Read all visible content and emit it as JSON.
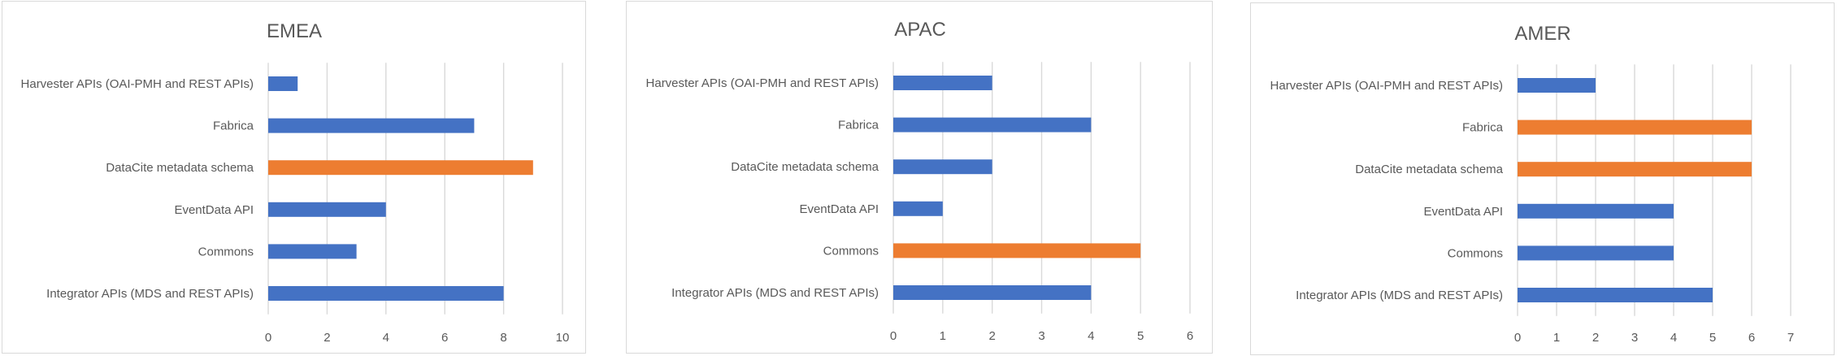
{
  "colors": {
    "default_bar": "#4472C4",
    "highlight_bar": "#ED7D31",
    "gridline": "#D9D9D9",
    "text": "#595959"
  },
  "chart_data": [
    {
      "type": "bar",
      "orientation": "horizontal",
      "title": "EMEA",
      "categories": [
        "Harvester APIs (OAI-PMH and REST APIs)",
        "Fabrica",
        "DataCite metadata schema",
        "EventData API",
        "Commons",
        "Integrator APIs (MDS and REST APIs)"
      ],
      "values": [
        1,
        7,
        9,
        4,
        3,
        8
      ],
      "highlight": [
        false,
        false,
        true,
        false,
        false,
        false
      ],
      "xlim": [
        0,
        10
      ],
      "xticks": [
        0,
        2,
        4,
        6,
        8,
        10
      ],
      "grid": true
    },
    {
      "type": "bar",
      "orientation": "horizontal",
      "title": "APAC",
      "categories": [
        "Harvester APIs (OAI-PMH and REST APIs)",
        "Fabrica",
        "DataCite metadata schema",
        "EventData API",
        "Commons",
        "Integrator APIs (MDS and REST APIs)"
      ],
      "values": [
        2,
        4,
        2,
        1,
        5,
        4
      ],
      "highlight": [
        false,
        false,
        false,
        false,
        true,
        false
      ],
      "xlim": [
        0,
        6
      ],
      "xticks": [
        0,
        1,
        2,
        3,
        4,
        5,
        6
      ],
      "grid": true
    },
    {
      "type": "bar",
      "orientation": "horizontal",
      "title": "AMER",
      "categories": [
        "Harvester APIs (OAI-PMH and REST APIs)",
        "Fabrica",
        "DataCite metadata schema",
        "EventData API",
        "Commons",
        "Integrator APIs (MDS and REST APIs)"
      ],
      "values": [
        2,
        6,
        6,
        4,
        4,
        5
      ],
      "highlight": [
        false,
        true,
        true,
        false,
        false,
        false
      ],
      "xlim": [
        0,
        7
      ],
      "xticks": [
        0,
        1,
        2,
        3,
        4,
        5,
        6,
        7
      ],
      "grid": true
    }
  ]
}
